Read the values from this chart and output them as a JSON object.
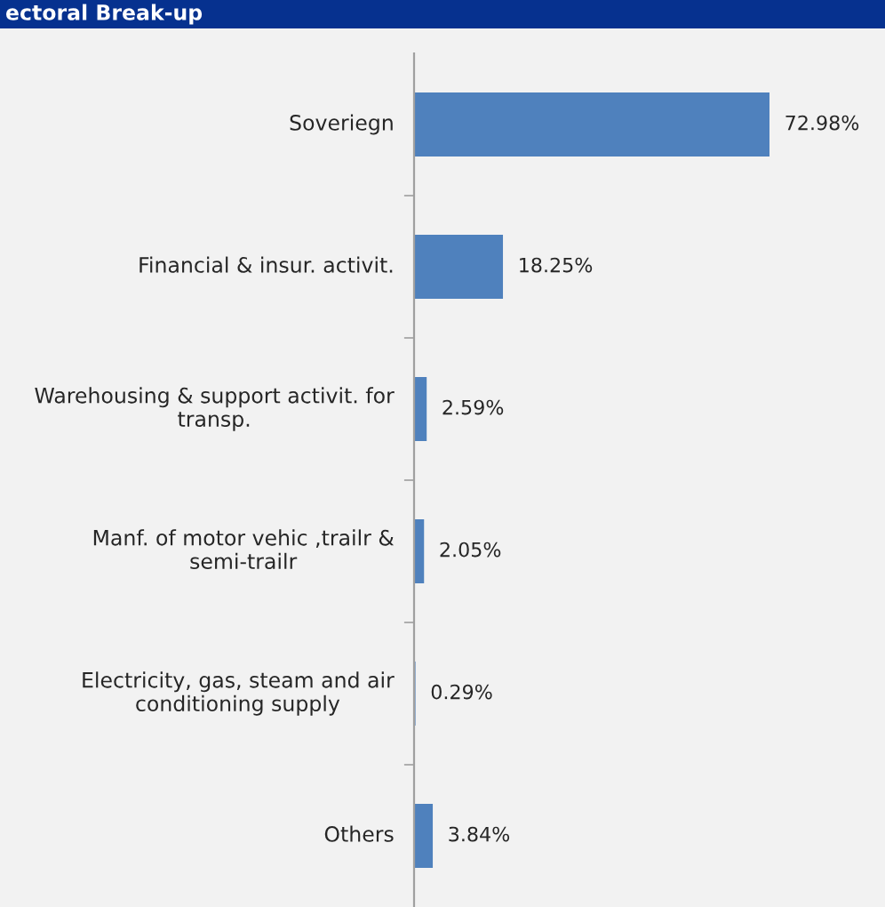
{
  "chart_data": {
    "type": "bar",
    "orientation": "horizontal",
    "title": "ectoral Break-up",
    "categories": [
      "Soveriegn",
      "Financial & insur. activit.",
      "Warehousing & support activit. for transp.",
      "Manf. of motor vehic ,trailr & semi-trailr",
      "Electricity, gas, steam and air conditioning supply",
      "Others"
    ],
    "values": [
      72.98,
      18.25,
      2.59,
      2.05,
      0.29,
      3.84
    ],
    "value_labels": [
      "72.98%",
      "18.25%",
      "2.59%",
      "2.05%",
      "0.29%",
      "3.84%"
    ],
    "color": "#4f81bd",
    "grid": false,
    "legend": false
  }
}
